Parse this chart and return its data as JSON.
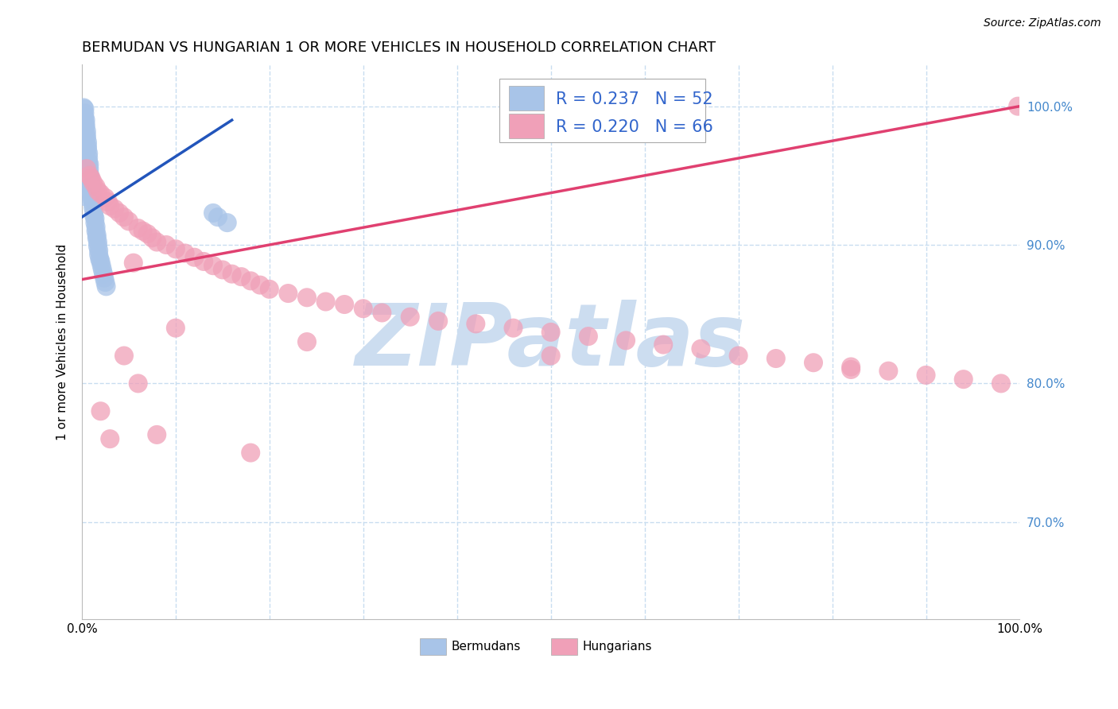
{
  "title": "BERMUDAN VS HUNGARIAN 1 OR MORE VEHICLES IN HOUSEHOLD CORRELATION CHART",
  "source": "Source: ZipAtlas.com",
  "ylabel": "1 or more Vehicles in Household",
  "bermuda_color": "#a8c4e8",
  "hungary_color": "#f0a0b8",
  "bermuda_line_color": "#2255bb",
  "hungary_line_color": "#e04070",
  "bermuda_R": 0.237,
  "bermuda_N": 52,
  "hungary_R": 0.22,
  "hungary_N": 66,
  "watermark": "ZIPatlas",
  "watermark_color": "#ccddf0",
  "background_color": "#ffffff",
  "grid_color": "#c8ddf0",
  "title_fontsize": 13,
  "axis_label_fontsize": 11,
  "tick_fontsize": 11,
  "legend_fontsize": 15,
  "source_fontsize": 10,
  "xlim": [
    0.0,
    1.0
  ],
  "ylim": [
    0.63,
    1.03
  ],
  "berm_x": [
    0.002,
    0.003,
    0.003,
    0.003,
    0.004,
    0.004,
    0.004,
    0.005,
    0.005,
    0.005,
    0.006,
    0.006,
    0.006,
    0.007,
    0.007,
    0.007,
    0.008,
    0.008,
    0.008,
    0.009,
    0.009,
    0.01,
    0.01,
    0.01,
    0.011,
    0.011,
    0.012,
    0.012,
    0.013,
    0.013,
    0.014,
    0.014,
    0.015,
    0.015,
    0.016,
    0.016,
    0.017,
    0.017,
    0.018,
    0.018,
    0.019,
    0.02,
    0.021,
    0.022,
    0.023,
    0.024,
    0.025,
    0.026,
    0.14,
    0.145,
    0.155,
    0.002
  ],
  "berm_y": [
    0.999,
    0.998,
    0.995,
    0.992,
    0.99,
    0.987,
    0.985,
    0.982,
    0.979,
    0.977,
    0.974,
    0.971,
    0.969,
    0.966,
    0.963,
    0.96,
    0.958,
    0.955,
    0.952,
    0.949,
    0.947,
    0.944,
    0.941,
    0.938,
    0.935,
    0.933,
    0.93,
    0.927,
    0.924,
    0.921,
    0.919,
    0.916,
    0.913,
    0.91,
    0.907,
    0.905,
    0.902,
    0.899,
    0.896,
    0.893,
    0.89,
    0.888,
    0.885,
    0.882,
    0.879,
    0.876,
    0.873,
    0.87,
    0.923,
    0.92,
    0.916,
    0.935
  ],
  "hung_x": [
    0.005,
    0.008,
    0.01,
    0.012,
    0.015,
    0.017,
    0.02,
    0.025,
    0.028,
    0.03,
    0.035,
    0.04,
    0.045,
    0.05,
    0.055,
    0.06,
    0.065,
    0.07,
    0.075,
    0.08,
    0.09,
    0.1,
    0.11,
    0.12,
    0.13,
    0.14,
    0.15,
    0.16,
    0.17,
    0.18,
    0.19,
    0.2,
    0.22,
    0.24,
    0.26,
    0.28,
    0.3,
    0.32,
    0.35,
    0.38,
    0.42,
    0.46,
    0.5,
    0.54,
    0.58,
    0.62,
    0.66,
    0.7,
    0.74,
    0.78,
    0.82,
    0.86,
    0.9,
    0.94,
    0.98,
    0.998,
    0.02,
    0.03,
    0.045,
    0.06,
    0.08,
    0.1,
    0.24,
    0.5,
    0.18,
    0.82
  ],
  "hung_y": [
    0.955,
    0.95,
    0.948,
    0.945,
    0.942,
    0.939,
    0.937,
    0.934,
    0.931,
    0.928,
    0.926,
    0.923,
    0.92,
    0.917,
    0.887,
    0.912,
    0.91,
    0.908,
    0.905,
    0.902,
    0.9,
    0.897,
    0.894,
    0.891,
    0.888,
    0.885,
    0.882,
    0.879,
    0.877,
    0.874,
    0.871,
    0.868,
    0.865,
    0.862,
    0.859,
    0.857,
    0.854,
    0.851,
    0.848,
    0.845,
    0.843,
    0.84,
    0.837,
    0.834,
    0.831,
    0.828,
    0.825,
    0.82,
    0.818,
    0.815,
    0.812,
    0.809,
    0.806,
    0.803,
    0.8,
    1.0,
    0.78,
    0.76,
    0.82,
    0.8,
    0.763,
    0.84,
    0.83,
    0.82,
    0.75,
    0.81
  ],
  "berm_line_x": [
    0.0,
    0.16
  ],
  "berm_line_y": [
    0.92,
    0.99
  ],
  "hung_line_x": [
    0.0,
    1.0
  ],
  "hung_line_y": [
    0.875,
    1.0
  ]
}
